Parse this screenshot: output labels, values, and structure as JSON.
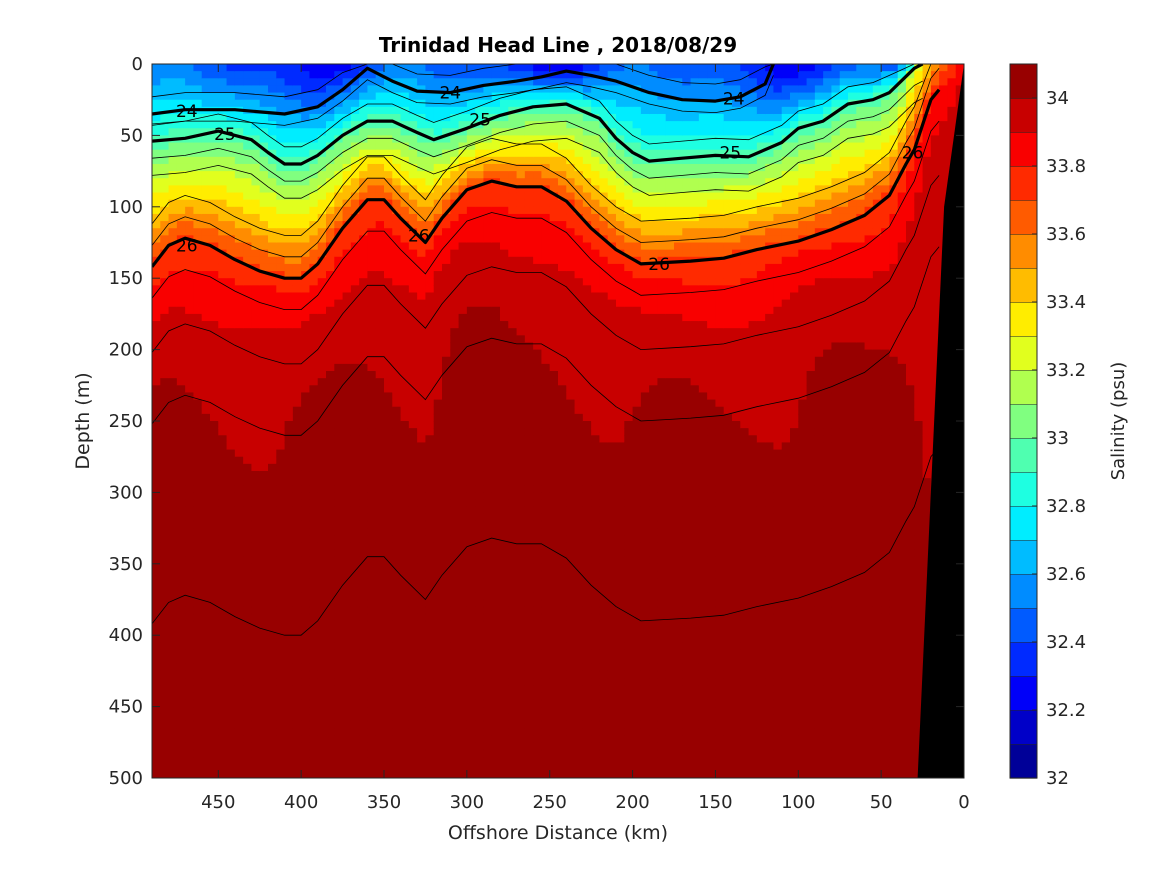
{
  "chart_data": {
    "type": "heatmap",
    "title": "Trinidad Head Line , 2018/08/29",
    "xlabel": "Offshore Distance (km)",
    "ylabel": "Depth (m)",
    "xlim": [
      490,
      0
    ],
    "x_reversed": true,
    "ylim": [
      0,
      500
    ],
    "y_reversed": true,
    "xticks": [
      "450",
      "400",
      "350",
      "300",
      "250",
      "200",
      "150",
      "100",
      "50",
      "0"
    ],
    "xtick_values": [
      450,
      400,
      350,
      300,
      250,
      200,
      150,
      100,
      50,
      0
    ],
    "yticks": [
      "0",
      "50",
      "100",
      "150",
      "200",
      "250",
      "300",
      "350",
      "400",
      "450",
      "500"
    ],
    "ytick_values": [
      0,
      50,
      100,
      150,
      200,
      250,
      300,
      350,
      400,
      450,
      500
    ],
    "colorbar": {
      "label": "Salinity (psu)",
      "min": 32,
      "max": 34.1,
      "step": 0.1,
      "tick_labels": [
        "32",
        "32.2",
        "32.4",
        "32.6",
        "32.8",
        "33",
        "33.2",
        "33.4",
        "33.6",
        "33.8",
        "34"
      ],
      "tick_values": [
        32,
        32.2,
        32.4,
        32.6,
        32.8,
        33,
        33.2,
        33.4,
        33.6,
        33.8,
        34
      ]
    },
    "contour_lines": [
      {
        "label": "24",
        "x": [
          490,
          470,
          440,
          410,
          390,
          375,
          360,
          345,
          330,
          310,
          290,
          270,
          255,
          240,
          225,
          210,
          190,
          170,
          150,
          135,
          120,
          115
        ],
        "y": [
          35,
          32,
          32,
          35,
          30,
          18,
          3,
          12,
          19,
          20,
          15,
          12,
          9,
          5,
          8,
          12,
          20,
          25,
          26,
          23,
          14,
          0
        ]
      },
      {
        "label": "25",
        "x": [
          490,
          470,
          450,
          430,
          420,
          410,
          400,
          390,
          375,
          360,
          345,
          330,
          320,
          300,
          280,
          260,
          240,
          220,
          210,
          200,
          190,
          170,
          150,
          130,
          110,
          100,
          85,
          70,
          55,
          45,
          30,
          25
        ],
        "y": [
          54,
          52,
          47,
          53,
          62,
          70,
          70,
          64,
          50,
          40,
          40,
          48,
          53,
          45,
          36,
          30,
          28,
          38,
          52,
          62,
          68,
          66,
          64,
          65,
          55,
          45,
          40,
          28,
          25,
          20,
          3,
          0
        ]
      },
      {
        "label": "26",
        "x": [
          490,
          480,
          470,
          455,
          440,
          425,
          410,
          400,
          390,
          375,
          360,
          350,
          340,
          325,
          315,
          300,
          285,
          270,
          255,
          240,
          225,
          210,
          195,
          180,
          165,
          145,
          125,
          100,
          80,
          60,
          45,
          35,
          30,
          20,
          15
        ],
        "y": [
          142,
          127,
          122,
          127,
          137,
          145,
          150,
          150,
          140,
          115,
          95,
          95,
          108,
          125,
          108,
          88,
          82,
          86,
          86,
          96,
          115,
          130,
          140,
          139,
          138,
          136,
          130,
          124,
          116,
          106,
          92,
          70,
          60,
          25,
          18
        ]
      }
    ],
    "contour_labels": [
      {
        "text": "24",
        "x": 469,
        "y": 33
      },
      {
        "text": "24",
        "x": 310,
        "y": 20
      },
      {
        "text": "24",
        "x": 139,
        "y": 24
      },
      {
        "text": "25",
        "x": 446,
        "y": 49
      },
      {
        "text": "25",
        "x": 292,
        "y": 39
      },
      {
        "text": "25",
        "x": 141,
        "y": 62
      },
      {
        "text": "26",
        "x": 469,
        "y": 127
      },
      {
        "text": "26",
        "x": 329,
        "y": 120
      },
      {
        "text": "26",
        "x": 184,
        "y": 140
      },
      {
        "text": "26",
        "x": 31,
        "y": 62
      }
    ],
    "colors": {
      "background": "#ffffff",
      "axis": "#262626",
      "bathymetry": "#000000",
      "contour": "#000000"
    }
  }
}
